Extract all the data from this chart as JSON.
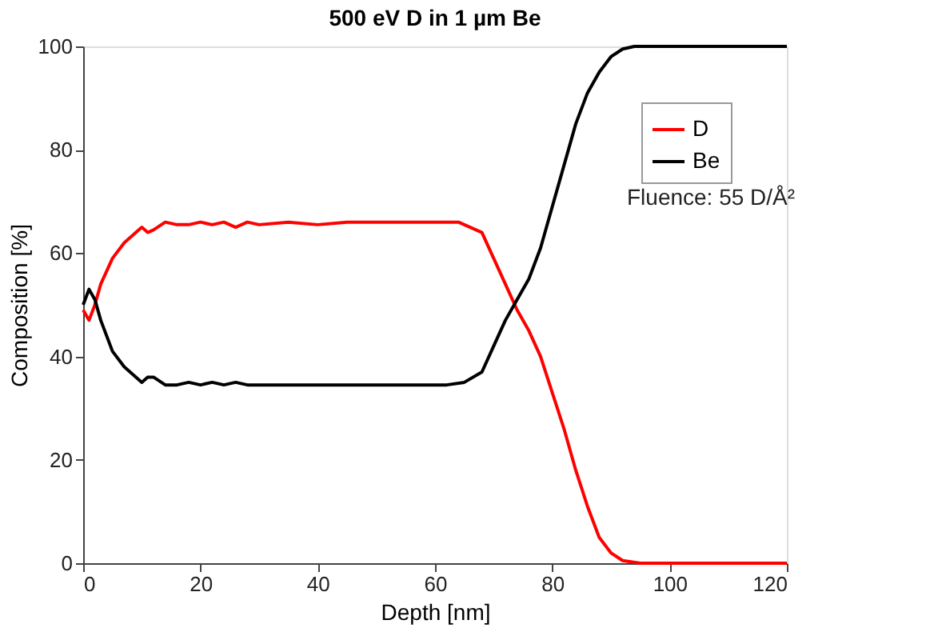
{
  "chart_data": {
    "type": "line",
    "title": "500 eV D in 1 µm Be",
    "xlabel": "Depth [nm]",
    "ylabel": "Composition [%]",
    "xlim": [
      0,
      120
    ],
    "ylim": [
      0,
      100
    ],
    "xticks": [
      0,
      20,
      40,
      60,
      80,
      100,
      120
    ],
    "yticks": [
      0,
      20,
      40,
      60,
      80,
      100
    ],
    "grid": false,
    "legend": "top right",
    "marker": "none",
    "line_style": "solid",
    "annotations": [
      "Fluence: 55 D/Å²"
    ],
    "series": [
      {
        "name": "D",
        "color": "#ff0000",
        "x": [
          0,
          1,
          2,
          3,
          5,
          7,
          9,
          10,
          11,
          12,
          14,
          16,
          18,
          20,
          22,
          24,
          26,
          28,
          30,
          35,
          40,
          45,
          50,
          55,
          60,
          64,
          66,
          68,
          70,
          72,
          74,
          76,
          78,
          80,
          82,
          84,
          86,
          88,
          90,
          92,
          95,
          100,
          110,
          120
        ],
        "values": [
          49,
          47,
          50,
          54,
          59,
          62,
          64,
          65,
          64,
          64.5,
          66,
          65.5,
          65.5,
          66,
          65.5,
          66,
          65,
          66,
          65.5,
          66,
          65.5,
          66,
          66,
          66,
          66,
          66,
          65,
          64,
          59,
          54,
          49,
          45,
          40,
          33,
          26,
          18,
          11,
          5,
          2,
          0.5,
          0,
          0,
          0,
          0
        ]
      },
      {
        "name": "Be",
        "color": "#000000",
        "x": [
          0,
          1,
          2,
          3,
          5,
          7,
          9,
          10,
          11,
          12,
          14,
          16,
          18,
          20,
          22,
          24,
          26,
          28,
          30,
          35,
          40,
          45,
          50,
          55,
          60,
          62,
          65,
          68,
          70,
          72,
          74,
          76,
          78,
          80,
          82,
          84,
          86,
          88,
          90,
          92,
          94,
          100,
          110,
          120
        ],
        "values": [
          50,
          53,
          51,
          47,
          41,
          38,
          36,
          35,
          36,
          36,
          34.5,
          34.5,
          35,
          34.5,
          35,
          34.5,
          35,
          34.5,
          34.5,
          34.5,
          34.5,
          34.5,
          34.5,
          34.5,
          34.5,
          34.5,
          35,
          37,
          42,
          47,
          51,
          55,
          61,
          69,
          77,
          85,
          91,
          95,
          98,
          99.5,
          100,
          100,
          100,
          100
        ]
      }
    ]
  }
}
